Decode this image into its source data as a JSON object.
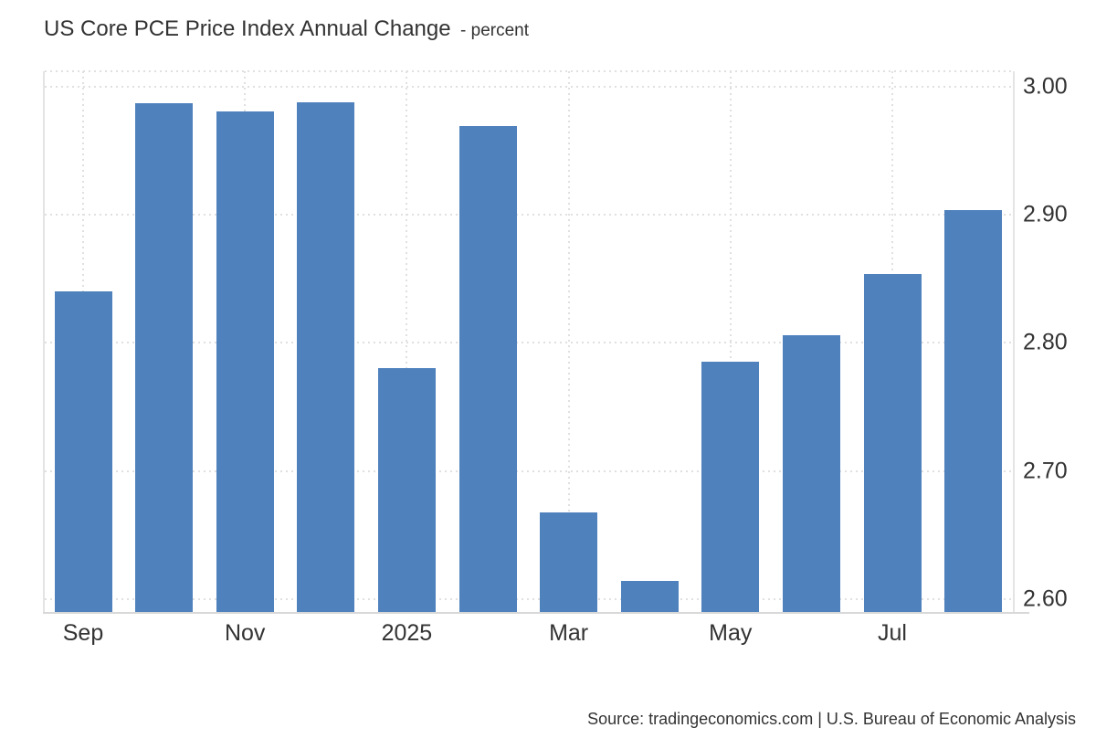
{
  "title": {
    "main": "US Core PCE Price Index Annual Change",
    "subtitle": "- percent"
  },
  "footer": {
    "source": "Source: tradingeconomics.com | U.S. Bureau of Economic Analysis"
  },
  "colors": {
    "bar": "#4f81bd",
    "grid": "#e0e0e0",
    "axis_line": "#e4e4e4",
    "baseline": "#d8d8d8",
    "text": "#333333",
    "background": "#ffffff"
  },
  "y_axis": {
    "ticks": [
      {
        "label": "3.00",
        "value": 3.0
      },
      {
        "label": "2.90",
        "value": 2.9
      },
      {
        "label": "2.80",
        "value": 2.8
      },
      {
        "label": "2.70",
        "value": 2.7
      },
      {
        "label": "2.60",
        "value": 2.6
      }
    ]
  },
  "x_axis": {
    "ticks": [
      {
        "label": "Sep",
        "bar_index": 0
      },
      {
        "label": "Nov",
        "bar_index": 2
      },
      {
        "label": "2025",
        "bar_index": 4
      },
      {
        "label": "Mar",
        "bar_index": 6
      },
      {
        "label": "May",
        "bar_index": 8
      },
      {
        "label": "Jul",
        "bar_index": 10
      }
    ]
  },
  "chart_data": {
    "type": "bar",
    "title": "US Core PCE Price Index Annual Change",
    "unit": "percent",
    "categories": [
      "Sep 2024",
      "Oct 2024",
      "Nov 2024",
      "Dec 2024",
      "Jan 2025",
      "Feb 2025",
      "Mar 2025",
      "Apr 2025",
      "May 2025",
      "Jun 2025",
      "Jul 2025",
      "Aug 2025"
    ],
    "values": [
      2.84,
      2.99,
      2.98,
      2.99,
      2.78,
      2.97,
      2.67,
      2.61,
      2.78,
      2.81,
      2.85,
      2.9
    ],
    "values_precise": [
      2.84,
      2.987,
      2.981,
      2.988,
      2.78,
      2.969,
      2.668,
      2.614,
      2.785,
      2.806,
      2.854,
      2.904
    ],
    "ylim": [
      2.59,
      3.012
    ],
    "xlabel": "",
    "ylabel": "percent",
    "grid": true,
    "legend": false,
    "x_tick_labels": [
      "Sep",
      "Nov",
      "2025",
      "Mar",
      "May",
      "Jul"
    ],
    "y_tick_labels": [
      "3.00",
      "2.90",
      "2.80",
      "2.70",
      "2.60"
    ]
  }
}
